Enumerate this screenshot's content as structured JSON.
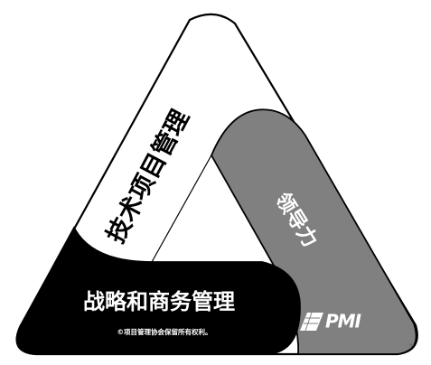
{
  "triangle": {
    "technical_pm": "技术项目管理",
    "leadership": "领导力",
    "strategic_business": "战略和商务管理"
  },
  "copyright": "©项目管理协会保留所有权利。",
  "logo": {
    "name": "PMI",
    "trademark": "™"
  },
  "colors": {
    "outline": "#000000",
    "technical_fill": "#ffffff",
    "leadership_fill": "#808080",
    "strategic_fill": "#000000"
  }
}
